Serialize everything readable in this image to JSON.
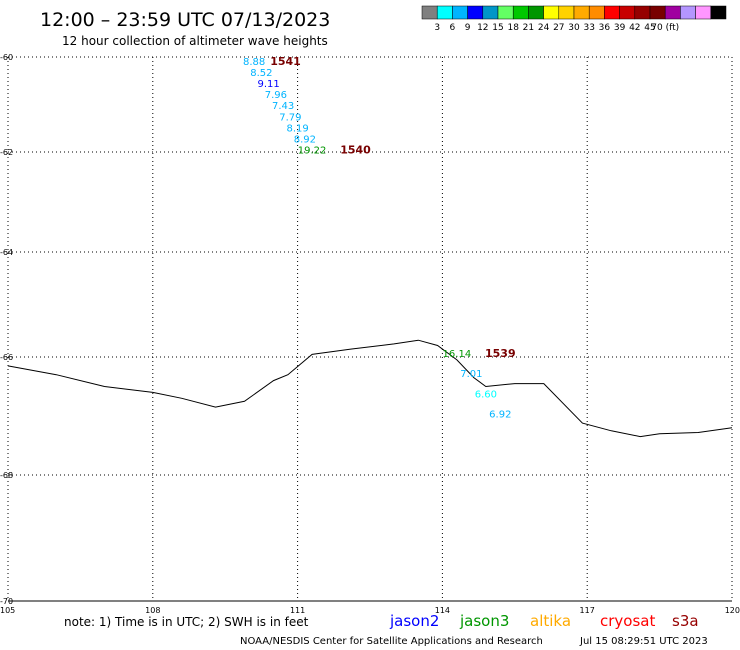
{
  "header": {
    "title": "12:00 – 23:59 UTC 07/13/2023",
    "subtitle": "12 hour collection of altimeter wave heights"
  },
  "color_scale": {
    "colors": [
      "#808080",
      "#00ffff",
      "#00b4ff",
      "#0000ff",
      "#0096c8",
      "#64ff64",
      "#00c800",
      "#009600",
      "#ffff00",
      "#ffd200",
      "#ffaa00",
      "#ff8c00",
      "#ff0000",
      "#c80000",
      "#960000",
      "#780000",
      "#a000a0",
      "#b496ff",
      "#ff96ff",
      "#000000"
    ],
    "labels": [
      "3",
      "6",
      "9",
      "12",
      "15",
      "18",
      "21",
      "24",
      "27",
      "30",
      "33",
      "36",
      "39",
      "42",
      "45",
      "70 (ft)"
    ]
  },
  "chart_data": {
    "type": "scatter",
    "xlim": [
      105,
      120
    ],
    "ylim": [
      -70,
      -60
    ],
    "x_ticks": [
      "105",
      "108",
      "111",
      "114",
      "117",
      "120"
    ],
    "y_ticks": [
      "-60",
      "-62",
      "-64",
      "-66",
      "-68",
      "-70"
    ],
    "grid": true,
    "observations": [
      {
        "lon": 110.1,
        "lat": -60.08,
        "swh": "8.88",
        "color": "#00b4ff"
      },
      {
        "lon": 110.25,
        "lat": -60.32,
        "swh": "8.52",
        "color": "#00b4ff"
      },
      {
        "lon": 110.4,
        "lat": -60.55,
        "swh": "9.11",
        "color": "#0000ff"
      },
      {
        "lon": 110.55,
        "lat": -60.78,
        "swh": "7.96",
        "color": "#00b4ff"
      },
      {
        "lon": 110.7,
        "lat": -61.01,
        "swh": "7.43",
        "color": "#00b4ff"
      },
      {
        "lon": 110.85,
        "lat": -61.25,
        "swh": "7.79",
        "color": "#00b4ff"
      },
      {
        "lon": 111.0,
        "lat": -61.48,
        "swh": "8.19",
        "color": "#00b4ff"
      },
      {
        "lon": 111.15,
        "lat": -61.72,
        "swh": "8.92",
        "color": "#00b4ff"
      },
      {
        "lon": 111.3,
        "lat": -61.95,
        "swh": "19.22",
        "color": "#009600"
      },
      {
        "lon": 114.3,
        "lat": -65.92,
        "swh": "16.14",
        "color": "#009600"
      },
      {
        "lon": 114.6,
        "lat": -66.27,
        "swh": "7.01",
        "color": "#00b4ff"
      },
      {
        "lon": 114.9,
        "lat": -66.62,
        "swh": "6.60",
        "color": "#00ffff"
      },
      {
        "lon": 115.2,
        "lat": -66.96,
        "swh": "6.92",
        "color": "#00b4ff"
      }
    ],
    "passes": [
      {
        "label": "1541",
        "lon": 110.75,
        "lat": -60.08,
        "color": "#780000"
      },
      {
        "label": "1540",
        "lon": 112.2,
        "lat": -61.95,
        "color": "#780000"
      },
      {
        "label": "1539",
        "lon": 115.2,
        "lat": -65.92,
        "color": "#780000"
      }
    ],
    "coastline": [
      [
        105,
        -66.15
      ],
      [
        106,
        -66.3
      ],
      [
        107,
        -66.5
      ],
      [
        108,
        -66.6
      ],
      [
        108.6,
        -66.7
      ],
      [
        109.3,
        -66.85
      ],
      [
        109.9,
        -66.75
      ],
      [
        110.5,
        -66.4
      ],
      [
        110.8,
        -66.3
      ],
      [
        111.3,
        -65.95
      ],
      [
        112.1,
        -65.85
      ],
      [
        113.0,
        -65.75
      ],
      [
        113.5,
        -65.68
      ],
      [
        113.9,
        -65.78
      ],
      [
        114.3,
        -66.05
      ],
      [
        114.65,
        -66.35
      ],
      [
        114.9,
        -66.5
      ],
      [
        115.5,
        -66.45
      ],
      [
        116.1,
        -66.45
      ],
      [
        116.9,
        -67.12
      ],
      [
        117.5,
        -67.25
      ],
      [
        118.1,
        -67.35
      ],
      [
        118.5,
        -67.3
      ],
      [
        119.3,
        -67.28
      ],
      [
        120,
        -67.2
      ]
    ]
  },
  "footer": {
    "note": "note: 1) Time is in UTC; 2) SWH is in feet",
    "satellites": [
      {
        "name": "jason2",
        "color": "#0000ff"
      },
      {
        "name": "jason3",
        "color": "#009600"
      },
      {
        "name": "altika",
        "color": "#ffaa00"
      },
      {
        "name": "cryosat",
        "color": "#ff0000"
      },
      {
        "name": "s3a",
        "color": "#960000"
      }
    ],
    "credit": "NOAA/NESDIS Center for Satellite Applications and Research",
    "timestamp": "Jul 15 08:29:51 UTC 2023"
  }
}
